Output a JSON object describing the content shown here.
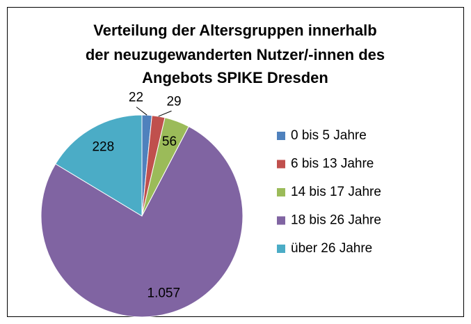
{
  "chart_data": {
    "type": "pie",
    "title": [
      "Verteilung der Altersgruppen innerhalb",
      "der neuzugewanderten Nutzer/-innen des",
      "Angebots SPIKE Dresden"
    ],
    "categories": [
      "0 bis 5 Jahre",
      "6 bis 13 Jahre",
      "14 bis 17 Jahre",
      "18 bis 26 Jahre",
      "über 26 Jahre"
    ],
    "values": [
      22,
      29,
      56,
      1057,
      228
    ],
    "value_labels": [
      "22",
      "29",
      "56",
      "1.057",
      "228"
    ],
    "colors": [
      "#4f81bd",
      "#c0504d",
      "#9bbb59",
      "#8064a2",
      "#4bacc6"
    ],
    "legend": "right"
  }
}
